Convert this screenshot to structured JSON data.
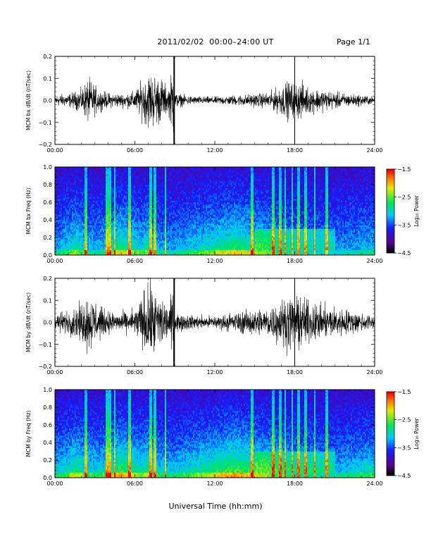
{
  "header": {
    "title": "2011/02/02  00:00–24:00 UT",
    "page": "Page 1/1"
  },
  "footer": {
    "xlabel": "Universal Time (hh:mm)"
  },
  "chart_data": [
    {
      "type": "line",
      "ylabel": "MCM bx dB/dt (nT/sec)",
      "xlabel": "",
      "x_ticks": [
        "00:00",
        "06:00",
        "12:00",
        "18:00",
        "24:00"
      ],
      "xlim": [
        0,
        24
      ],
      "ylim": [
        -0.2,
        0.2
      ],
      "y_ticks": [
        "−0.2",
        "−0.1",
        "0.0",
        "0.1",
        "0.2"
      ],
      "y_tick_values": [
        -0.2,
        -0.1,
        0.0,
        0.1,
        0.2
      ],
      "series": [
        {
          "color": "#000000",
          "x": [
            0,
            1,
            2,
            2.5,
            3,
            3.5,
            4,
            5,
            6,
            6.5,
            7,
            7.5,
            8,
            8.5,
            8.9,
            9,
            10,
            11,
            12,
            13,
            14,
            15,
            16,
            16.5,
            17,
            17.5,
            18,
            18.5,
            19,
            20,
            21,
            22,
            23,
            24
          ],
          "amplitude": [
            0.03,
            0.035,
            0.06,
            0.12,
            0.08,
            0.05,
            0.04,
            0.035,
            0.05,
            0.1,
            0.15,
            0.14,
            0.12,
            0.06,
            0.2,
            0.04,
            0.025,
            0.02,
            0.02,
            0.025,
            0.03,
            0.035,
            0.04,
            0.06,
            0.08,
            0.1,
            0.09,
            0.1,
            0.07,
            0.06,
            0.045,
            0.035,
            0.03,
            0.02
          ]
        }
      ]
    },
    {
      "type": "heatmap",
      "ylabel": "MCM bx Freq (Hz)",
      "xlabel": "",
      "x_ticks": [
        "00:00",
        "06:00",
        "12:00",
        "18:00",
        "24:00"
      ],
      "xlim": [
        0,
        24
      ],
      "ylim": [
        0.0,
        1.0
      ],
      "y_ticks": [
        "0.0",
        "0.2",
        "0.4",
        "0.6",
        "0.8",
        "1.0"
      ],
      "y_tick_values": [
        0.0,
        0.2,
        0.4,
        0.6,
        0.8,
        1.0
      ],
      "colorbar": {
        "label": "Log₁₀ Power",
        "ticks": [
          "−1.5",
          "−2.5",
          "−3.5",
          "−4.5"
        ],
        "tick_values": [
          -1.5,
          -2.5,
          -3.5,
          -4.5
        ],
        "range": [
          -4.5,
          -1.5
        ]
      }
    },
    {
      "type": "line",
      "ylabel": "MCM by dB/dt (nT/sec)",
      "xlabel": "",
      "x_ticks": [
        "00:00",
        "06:00",
        "12:00",
        "18:00",
        "24:00"
      ],
      "xlim": [
        0,
        24
      ],
      "ylim": [
        -0.2,
        0.2
      ],
      "y_ticks": [
        "−0.2",
        "−0.1",
        "0.0",
        "0.1",
        "0.2"
      ],
      "y_tick_values": [
        -0.2,
        -0.1,
        0.0,
        0.1,
        0.2
      ],
      "series": [
        {
          "color": "#000000",
          "x": [
            0,
            1,
            2,
            2.5,
            3,
            3.5,
            4,
            5,
            6,
            6.5,
            7,
            7.5,
            8,
            8.5,
            8.9,
            9,
            10,
            11,
            12,
            13,
            14,
            15,
            16,
            16.5,
            17,
            17.5,
            18,
            18.5,
            19,
            20,
            21,
            22,
            23,
            24
          ],
          "amplitude": [
            0.05,
            0.06,
            0.1,
            0.16,
            0.12,
            0.08,
            0.06,
            0.05,
            0.07,
            0.14,
            0.2,
            0.18,
            0.15,
            0.08,
            0.2,
            0.05,
            0.04,
            0.035,
            0.035,
            0.045,
            0.06,
            0.07,
            0.08,
            0.1,
            0.12,
            0.14,
            0.13,
            0.14,
            0.11,
            0.09,
            0.08,
            0.07,
            0.05,
            0.04
          ]
        }
      ]
    },
    {
      "type": "heatmap",
      "ylabel": "MCM by Freq (Hz)",
      "xlabel": "",
      "x_ticks": [
        "00:00",
        "06:00",
        "12:00",
        "18:00",
        "24:00"
      ],
      "xlim": [
        0,
        24
      ],
      "ylim": [
        0.0,
        1.0
      ],
      "y_ticks": [
        "0.0",
        "0.2",
        "0.4",
        "0.6",
        "0.8",
        "1.0"
      ],
      "y_tick_values": [
        0.0,
        0.2,
        0.4,
        0.6,
        0.8,
        1.0
      ],
      "colorbar": {
        "label": "Log₁₀ Power",
        "ticks": [
          "−1.5",
          "−2.5",
          "−3.5",
          "−4.5"
        ],
        "tick_values": [
          -1.5,
          -2.5,
          -3.5,
          -4.5
        ],
        "range": [
          -4.5,
          -1.5
        ]
      }
    }
  ]
}
